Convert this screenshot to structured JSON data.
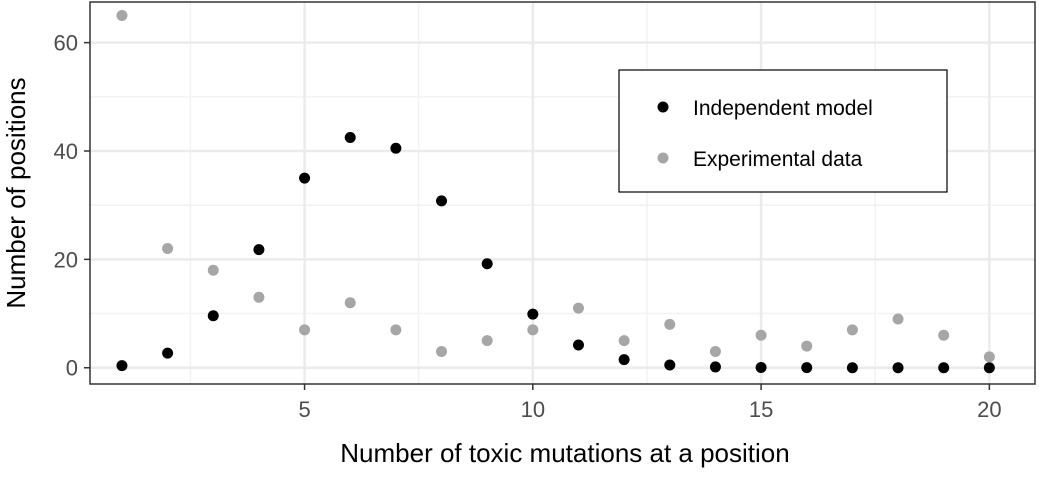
{
  "chart_data": {
    "type": "scatter",
    "xlabel": "Number of toxic mutations at a position",
    "ylabel": "Number of positions",
    "xlim": [
      0.3,
      21.0
    ],
    "ylim": [
      -3.0,
      67.5
    ],
    "x_ticks": [
      5,
      10,
      15,
      20
    ],
    "y_ticks": [
      0,
      20,
      40,
      60
    ],
    "grid": true,
    "legend_position": "top-right",
    "series": [
      {
        "name": "Independent model",
        "color": "#000000",
        "x": [
          1,
          2,
          3,
          4,
          5,
          6,
          7,
          8,
          9,
          10,
          11,
          12,
          13,
          14,
          15,
          16,
          17,
          18,
          19,
          20
        ],
        "y": [
          0.4,
          2.7,
          9.6,
          21.8,
          35.0,
          42.5,
          40.5,
          30.8,
          19.2,
          9.9,
          4.2,
          1.5,
          0.5,
          0.15,
          0.05,
          0.02,
          0,
          0,
          0,
          0
        ]
      },
      {
        "name": "Experimental data",
        "color": "#a6a6a6",
        "x": [
          1,
          2,
          3,
          4,
          5,
          6,
          7,
          8,
          9,
          10,
          11,
          12,
          13,
          14,
          15,
          16,
          17,
          18,
          19,
          20
        ],
        "y": [
          65,
          22,
          18,
          13,
          7,
          12,
          7,
          3,
          5,
          7,
          11,
          5,
          8,
          3,
          6,
          4,
          7,
          9,
          6,
          2
        ]
      }
    ]
  }
}
